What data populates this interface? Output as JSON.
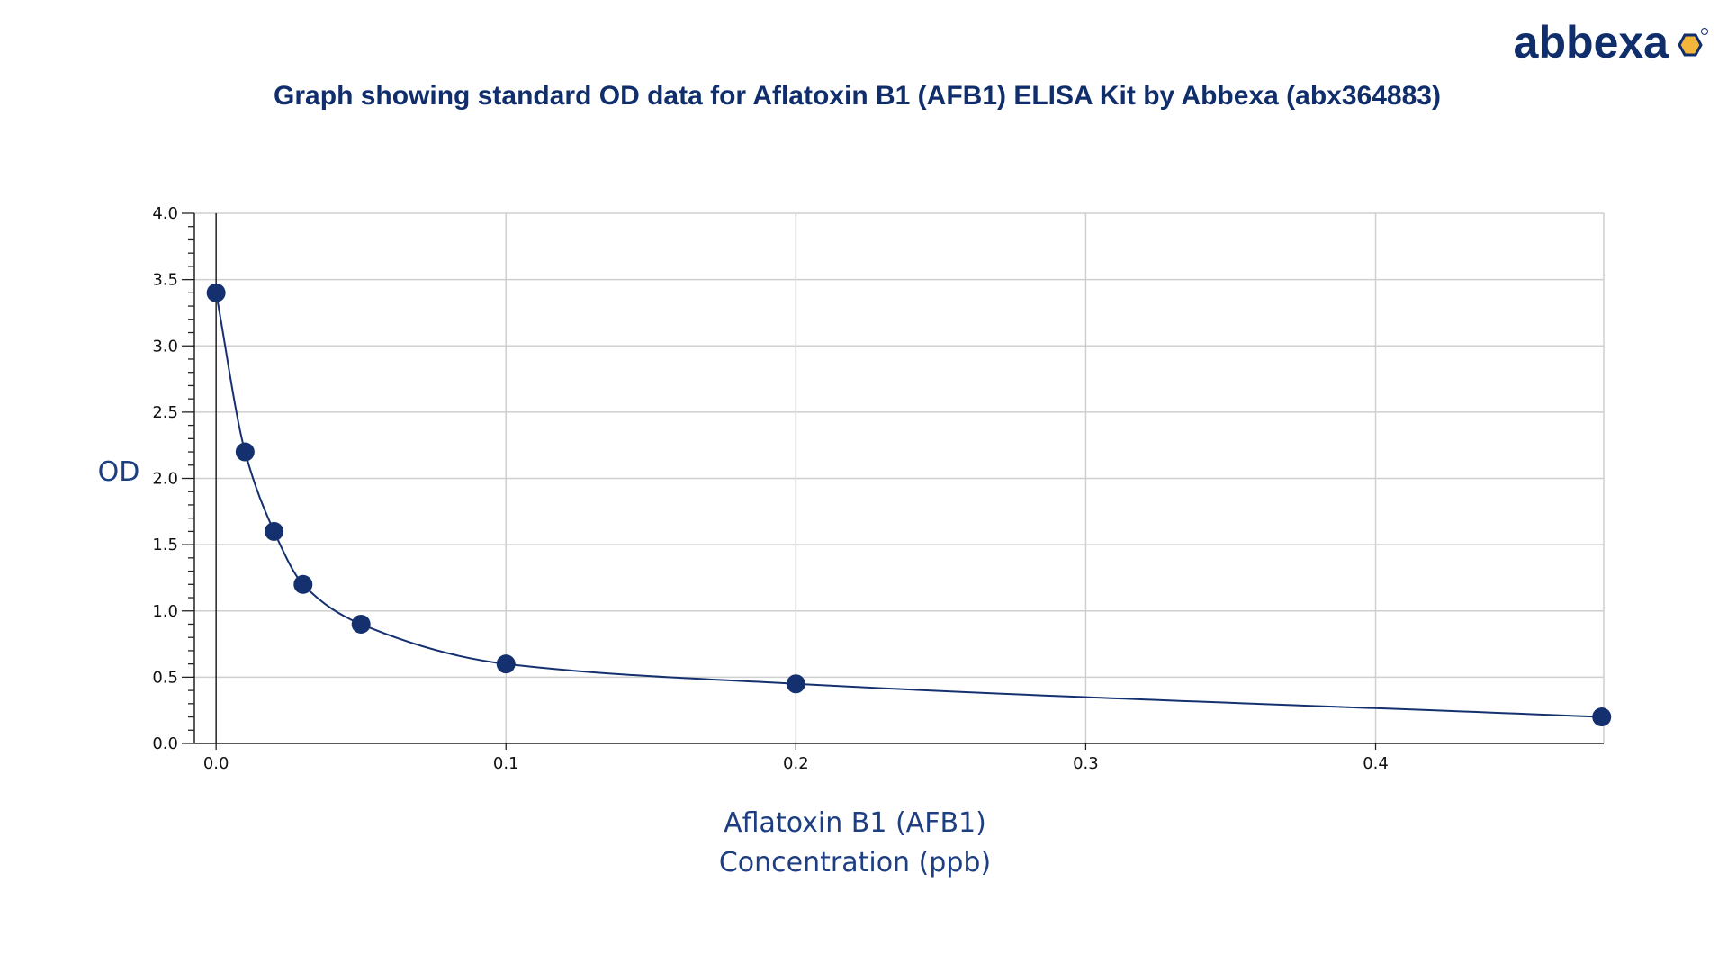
{
  "brand": {
    "name": "abbexa",
    "accent_color": "#f4b63a",
    "text_color": "#102e6c"
  },
  "chart_data": {
    "type": "line",
    "title": "Graph showing standard OD data for Aflatoxin B1 (AFB1) ELISA Kit by Abbexa (abx364883)",
    "xlabel_lines": [
      "Aflatoxin B1 (AFB1)",
      "Concentration (ppb)"
    ],
    "ylabel": "OD",
    "xlim": [
      -0.0075,
      0.4787
    ],
    "ylim": [
      0,
      4.0
    ],
    "xticks": [
      0.0,
      0.1,
      0.2,
      0.3,
      0.4
    ],
    "xtick_labels": [
      "0.0",
      "0.1",
      "0.2",
      "0.3",
      "0.4"
    ],
    "yticks": [
      0.0,
      0.5,
      1.0,
      1.5,
      2.0,
      2.5,
      3.0,
      3.5,
      4.0
    ],
    "ytick_labels": [
      "0.0",
      "0.5",
      "1.0",
      "1.5",
      "2.0",
      "2.5",
      "3.0",
      "3.5",
      "4.0"
    ],
    "grid": true,
    "line_color": "#14306e",
    "marker_color": "#14306e",
    "series": [
      {
        "x": [
          0.0,
          0.01,
          0.02,
          0.03,
          0.05,
          0.1,
          0.2,
          0.478
        ],
        "y": [
          3.4,
          2.2,
          1.6,
          1.2,
          0.9,
          0.6,
          0.45,
          0.2
        ]
      }
    ]
  }
}
